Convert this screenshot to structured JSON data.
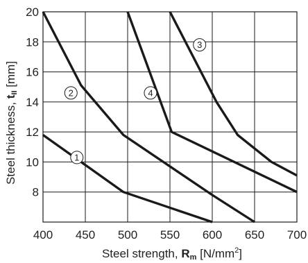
{
  "chart_data": {
    "type": "line",
    "title": "",
    "xlabel": "Steel strength, ",
    "xlabel_sym": "R",
    "xlabel_sub": "m",
    "xlabel_unit": " [N/mm",
    "xlabel_sup": "2",
    "xlabel_end": "]",
    "ylabel": "Steel thickness, ",
    "ylabel_sym": "t",
    "ylabel_sub": "II",
    "ylabel_unit": " [mm]",
    "xlim": [
      400,
      700
    ],
    "ylim": [
      6,
      20
    ],
    "xticks": [
      400,
      450,
      500,
      550,
      600,
      650,
      700
    ],
    "yticks": [
      8,
      10,
      12,
      14,
      16,
      18,
      20
    ],
    "grid": true,
    "series": [
      {
        "label": "1",
        "x": [
          400,
          495,
          600
        ],
        "y": [
          11.8,
          8.0,
          6.0
        ],
        "label_at": [
          440,
          10.3
        ]
      },
      {
        "label": "2",
        "x": [
          400,
          445,
          495,
          600,
          650
        ],
        "y": [
          20.0,
          15.1,
          11.8,
          7.8,
          6.0
        ],
        "label_at": [
          433,
          14.6
        ]
      },
      {
        "label": "3",
        "x": [
          550,
          605,
          630,
          670,
          700
        ],
        "y": [
          20.0,
          14.0,
          11.8,
          10.0,
          9.1
        ],
        "label_at": [
          585,
          17.8
        ]
      },
      {
        "label": "4",
        "x": [
          500,
          552,
          700
        ],
        "y": [
          20.0,
          12.0,
          8.0
        ],
        "label_at": [
          527,
          14.6
        ]
      }
    ]
  }
}
